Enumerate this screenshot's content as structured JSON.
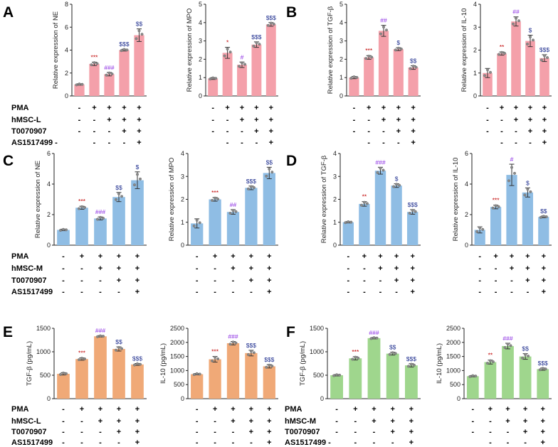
{
  "colors": {
    "pink": "#f4a0aa",
    "blue": "#8fbde4",
    "orange": "#f0a977",
    "green": "#9fd68d",
    "star": "#c00000",
    "hash": "#8a2be2",
    "dollar": "#1f2f8f"
  },
  "panel_labels": [
    "A",
    "B",
    "C",
    "D",
    "E",
    "F"
  ],
  "condition_tables": [
    {
      "names": [
        "PMA",
        "hMSC-L",
        "T0070907",
        "AS1517499 -"
      ],
      "signs": [
        [
          "-",
          "+",
          "+",
          "+",
          "+"
        ],
        [
          "-",
          "-",
          "+",
          "+",
          "+"
        ],
        [
          "-",
          "-",
          "-",
          "+",
          "+"
        ],
        [
          "-",
          "-",
          "-",
          "+"
        ]
      ]
    },
    {
      "names": [
        "PMA",
        "hMSC-M",
        "T0070907",
        "AS1517499"
      ],
      "signs": [
        [
          "-",
          "+",
          "+",
          "+",
          "+"
        ],
        [
          "-",
          "-",
          "+",
          "+",
          "+"
        ],
        [
          "-",
          "-",
          "-",
          "+",
          "+"
        ],
        [
          "-",
          "-",
          "-",
          "-",
          "+"
        ]
      ]
    },
    {
      "names": [
        "PMA",
        "hMSC-L",
        "T0070907",
        "AS1517499"
      ],
      "signs": [
        [
          "-",
          "+",
          "+",
          "+",
          "+"
        ],
        [
          "-",
          "-",
          "+",
          "+",
          "+"
        ],
        [
          "-",
          "-",
          "-",
          "+",
          "+"
        ],
        [
          "-",
          "-",
          "-",
          "-",
          "+"
        ]
      ]
    },
    {
      "names": [
        "PMA",
        "hMSC-M",
        "T0070907",
        "AS1517499 -"
      ],
      "signs": [
        [
          "-",
          "+",
          "+",
          "+",
          "+"
        ],
        [
          "-",
          "-",
          "+",
          "+",
          "+"
        ],
        [
          "-",
          "-",
          "-",
          "+",
          "+"
        ],
        [
          "-",
          "-",
          "-",
          "+"
        ]
      ]
    }
  ],
  "chart_data": [
    {
      "type": "bar",
      "panel": "A",
      "ylabel": "Relative expression of NE",
      "ylim": [
        0,
        8
      ],
      "yticks": [
        "0",
        "2",
        "4",
        "6",
        "8"
      ],
      "values": [
        1.0,
        2.8,
        1.9,
        4.0,
        5.3
      ],
      "errors": [
        0.06,
        0.15,
        0.15,
        0.08,
        0.55
      ],
      "annotations": [
        "",
        "***",
        "###",
        "$$$",
        "$$"
      ]
    },
    {
      "type": "bar",
      "panel": "A",
      "ylabel": "Relative expression of MPO",
      "ylim": [
        0,
        5
      ],
      "yticks": [
        "0",
        "1",
        "2",
        "3",
        "4",
        "5"
      ],
      "values": [
        0.95,
        2.35,
        1.7,
        2.8,
        3.9
      ],
      "errors": [
        0.05,
        0.3,
        0.15,
        0.15,
        0.1
      ],
      "annotations": [
        "",
        "*",
        "#",
        "$$$",
        "$$$"
      ]
    },
    {
      "type": "bar",
      "panel": "B",
      "ylabel": "Relative expression of TGF-β",
      "ylim": [
        0,
        5
      ],
      "yticks": [
        "0",
        "1",
        "2",
        "3",
        "4",
        "5"
      ],
      "values": [
        1.0,
        2.1,
        3.55,
        2.55,
        1.55
      ],
      "errors": [
        0.06,
        0.1,
        0.3,
        0.08,
        0.1
      ],
      "annotations": [
        "",
        "***",
        "##",
        "$",
        "$$"
      ]
    },
    {
      "type": "bar",
      "panel": "B",
      "ylabel": "Relative expression of IL-10",
      "ylim": [
        0,
        4
      ],
      "yticks": [
        "0",
        "1",
        "2",
        "3",
        "4"
      ],
      "values": [
        1.0,
        1.85,
        3.25,
        2.4,
        1.65
      ],
      "errors": [
        0.2,
        0.07,
        0.2,
        0.25,
        0.15
      ],
      "annotations": [
        "",
        "**",
        "##",
        "$",
        "$$$"
      ]
    },
    {
      "type": "bar",
      "panel": "C",
      "ylabel": "Relative expression of NE",
      "ylim": [
        0,
        6
      ],
      "yticks": [
        "0",
        "2",
        "4",
        "6"
      ],
      "values": [
        1.0,
        2.45,
        1.75,
        3.15,
        4.25
      ],
      "errors": [
        0.05,
        0.1,
        0.1,
        0.3,
        0.55
      ],
      "annotations": [
        "",
        "***",
        "###",
        "$$",
        "$"
      ]
    },
    {
      "type": "bar",
      "panel": "C",
      "ylabel": "Relative expression of MPO",
      "ylim": [
        0,
        4
      ],
      "yticks": [
        "0",
        "1",
        "2",
        "3",
        "4"
      ],
      "values": [
        0.95,
        2.0,
        1.45,
        2.5,
        3.15
      ],
      "errors": [
        0.2,
        0.08,
        0.1,
        0.08,
        0.25
      ],
      "annotations": [
        "",
        "***",
        "##",
        "$$$",
        "$$"
      ]
    },
    {
      "type": "bar",
      "panel": "D",
      "ylabel": "Relative expression of TGF-β",
      "ylim": [
        0,
        4
      ],
      "yticks": [
        "0",
        "1",
        "2",
        "3",
        "4"
      ],
      "values": [
        1.0,
        1.8,
        3.25,
        2.6,
        1.45
      ],
      "errors": [
        0.03,
        0.1,
        0.15,
        0.08,
        0.1
      ],
      "annotations": [
        "",
        "**",
        "###",
        "$",
        "$$$"
      ]
    },
    {
      "type": "bar",
      "panel": "D",
      "ylabel": "Relative expression of IL-10",
      "ylim": [
        0,
        6
      ],
      "yticks": [
        "0",
        "2",
        "4",
        "6"
      ],
      "values": [
        1.0,
        2.5,
        4.6,
        3.45,
        1.85
      ],
      "errors": [
        0.2,
        0.12,
        0.7,
        0.3,
        0.06
      ],
      "annotations": [
        "",
        "***",
        "#",
        "$",
        "$$"
      ]
    },
    {
      "type": "bar",
      "panel": "E",
      "ylabel": "TGF-β  (pg/mL)",
      "ylim": [
        0,
        1500
      ],
      "yticks": [
        "0",
        "500",
        "1000",
        "1500"
      ],
      "values": [
        530,
        845,
        1330,
        1060,
        730
      ],
      "errors": [
        25,
        25,
        15,
        45,
        20
      ],
      "annotations": [
        "",
        "***",
        "###",
        "$$",
        "$$$"
      ]
    },
    {
      "type": "bar",
      "panel": "E",
      "ylabel": "IL-10  (pg/mL)",
      "ylim": [
        0,
        2500
      ],
      "yticks": [
        "0",
        "500",
        "1000",
        "1500",
        "2000",
        "2500"
      ],
      "values": [
        870,
        1400,
        1970,
        1620,
        1150
      ],
      "errors": [
        25,
        100,
        60,
        100,
        60
      ],
      "annotations": [
        "",
        "***",
        "###",
        "$$$",
        "$$$"
      ]
    },
    {
      "type": "bar",
      "panel": "F",
      "ylabel": "TGF-β  (pg/mL)",
      "ylim": [
        0,
        1500
      ],
      "yticks": [
        "0",
        "500",
        "1000",
        "1500"
      ],
      "values": [
        500,
        860,
        1290,
        960,
        710
      ],
      "errors": [
        15,
        35,
        15,
        30,
        35
      ],
      "annotations": [
        "",
        "***",
        "###",
        "$$",
        "$$$"
      ]
    },
    {
      "type": "bar",
      "panel": "F",
      "ylabel": "IL-10  (pg/mL)",
      "ylim": [
        0,
        2500
      ],
      "yticks": [
        "0",
        "500",
        "1000",
        "1500",
        "2000",
        "2500"
      ],
      "values": [
        800,
        1300,
        1870,
        1500,
        1050
      ],
      "errors": [
        25,
        70,
        100,
        100,
        40
      ],
      "annotations": [
        "",
        "**",
        "###",
        "$$",
        "$$$"
      ]
    }
  ]
}
